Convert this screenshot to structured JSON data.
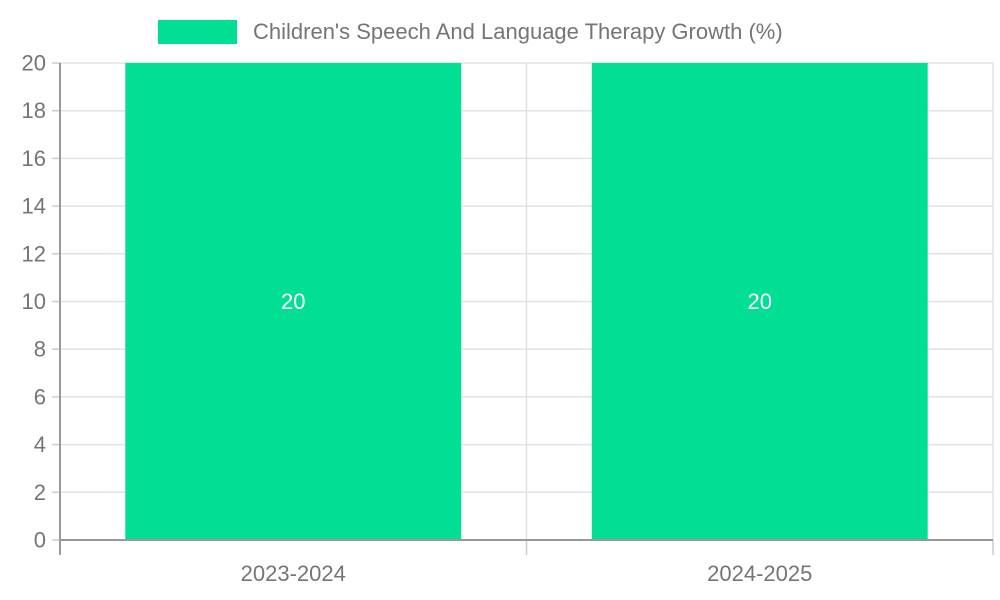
{
  "chart_data": {
    "type": "bar",
    "title": "Children's Speech And Language Therapy Growth (%)",
    "categories": [
      "2023-2024",
      "2024-2025"
    ],
    "series": [
      {
        "name": "Children's Speech And Language Therapy Growth (%)",
        "values": [
          20,
          20
        ]
      }
    ],
    "values": [
      20,
      20
    ],
    "bar_labels": [
      "20",
      "20"
    ],
    "xlabel": "",
    "ylabel": "",
    "ylim": [
      0,
      20
    ],
    "ytick_step": 2,
    "ytick_labels": [
      "0",
      "2",
      "4",
      "6",
      "8",
      "10",
      "12",
      "14",
      "16",
      "18",
      "20"
    ],
    "grid": true,
    "legend_position": "top",
    "colors": {
      "bar": "#00DF94",
      "bar_label": "#ffffff",
      "axis_line": "#999999",
      "grid_line": "#E3E3E3",
      "tick_line": "#CCCCCC",
      "tick_text": "#757575",
      "legend_text": "#757575",
      "background": "#ffffff"
    }
  }
}
